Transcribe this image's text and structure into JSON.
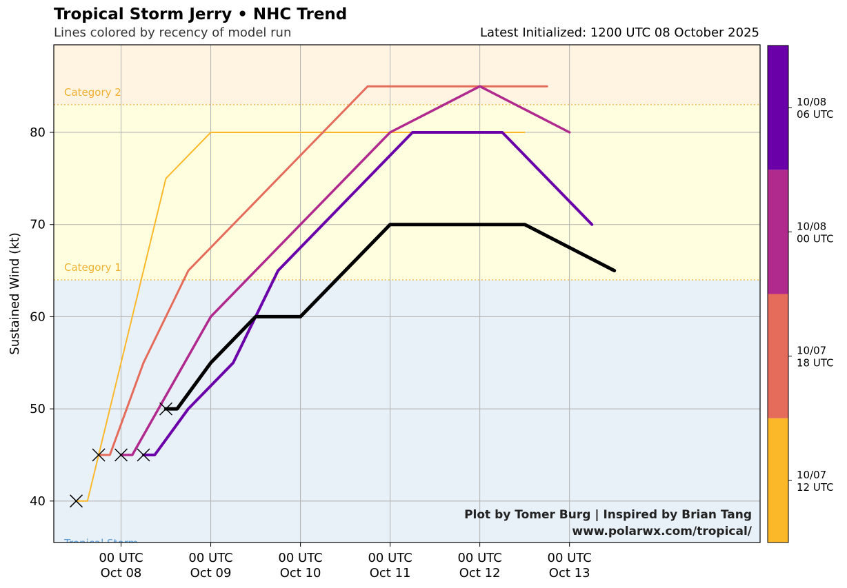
{
  "header": {
    "title": "Tropical Storm Jerry • NHC Trend",
    "subtitle": "Lines colored by recency of model run",
    "initialized": "Latest Initialized: 1200 UTC 08 October 2025"
  },
  "credit": {
    "line1": "Plot by Tomer Burg | Inspired by Brian Tang",
    "line2": "www.polarwx.com/tropical/"
  },
  "chart_data": {
    "type": "line",
    "ylabel": "Sustained Wind (kt)",
    "ylim": [
      35.5,
      89.5
    ],
    "xlim_hours": [
      -18,
      171
    ],
    "x_ticks": [
      {
        "hour": 0,
        "line1": "00 UTC",
        "line2": "Oct 08"
      },
      {
        "hour": 24,
        "line1": "00 UTC",
        "line2": "Oct 09"
      },
      {
        "hour": 48,
        "line1": "00 UTC",
        "line2": "Oct 10"
      },
      {
        "hour": 72,
        "line1": "00 UTC",
        "line2": "Oct 11"
      },
      {
        "hour": 96,
        "line1": "00 UTC",
        "line2": "Oct 12"
      },
      {
        "hour": 120,
        "line1": "00 UTC",
        "line2": "Oct 13"
      }
    ],
    "y_ticks": [
      40,
      50,
      60,
      70,
      80
    ],
    "grid": true,
    "categories": [
      {
        "label": "Tropical Storm",
        "min": 34,
        "max": 64,
        "color": "#e8f0f8",
        "text_color": "#5b9bd5"
      },
      {
        "label": "Category 1",
        "min": 64,
        "max": 83,
        "color": "#ffffe0",
        "text_color": "#f0b030"
      },
      {
        "label": "Category 2",
        "min": 83,
        "max": 96,
        "color": "#fff4e2",
        "text_color": "#f0b030"
      }
    ],
    "series": [
      {
        "run": "10/07 12 UTC",
        "color": "#fbb829",
        "width": 2,
        "points": [
          [
            -12,
            40
          ],
          [
            -9,
            40
          ],
          [
            12,
            75
          ],
          [
            24,
            80
          ],
          [
            48,
            80
          ],
          [
            108,
            80
          ]
        ],
        "start_marker": [
          -12,
          40
        ]
      },
      {
        "run": "10/07 18 UTC",
        "color": "#e56b5b",
        "width": 3,
        "points": [
          [
            -6,
            45
          ],
          [
            -3,
            45
          ],
          [
            6,
            55
          ],
          [
            18,
            65
          ],
          [
            66,
            85
          ],
          [
            114,
            85
          ]
        ],
        "start_marker": [
          -6,
          45
        ]
      },
      {
        "run": "10/08 00 UTC",
        "color": "#b02a8e",
        "width": 3.5,
        "points": [
          [
            0,
            45
          ],
          [
            3,
            45
          ],
          [
            24,
            60
          ],
          [
            72,
            80
          ],
          [
            96,
            85
          ],
          [
            120,
            80
          ]
        ],
        "start_marker": [
          0,
          45
        ]
      },
      {
        "run": "10/08 06 UTC",
        "color": "#6a00a8",
        "width": 4,
        "points": [
          [
            6,
            45
          ],
          [
            9,
            45
          ],
          [
            18,
            50
          ],
          [
            30,
            55
          ],
          [
            42,
            65
          ],
          [
            78,
            80
          ],
          [
            102,
            80
          ],
          [
            126,
            70
          ]
        ],
        "start_marker": [
          6,
          45
        ]
      },
      {
        "run": "10/08 12 UTC",
        "color": "#000000",
        "width": 5,
        "points": [
          [
            12,
            50
          ],
          [
            15,
            50
          ],
          [
            24,
            55
          ],
          [
            36,
            60
          ],
          [
            48,
            60
          ],
          [
            72,
            70
          ],
          [
            108,
            70
          ],
          [
            132,
            65
          ]
        ],
        "start_marker": [
          12,
          50
        ]
      }
    ],
    "colorbar": {
      "segments": [
        {
          "label_line1": "10/07",
          "label_line2": "12 UTC",
          "color": "#fbb829"
        },
        {
          "label_line1": "10/07",
          "label_line2": "18 UTC",
          "color": "#e56b5b"
        },
        {
          "label_line1": "10/08",
          "label_line2": "00 UTC",
          "color": "#b02a8e"
        },
        {
          "label_line1": "10/08",
          "label_line2": "06 UTC",
          "color": "#6a00a8"
        }
      ]
    }
  }
}
